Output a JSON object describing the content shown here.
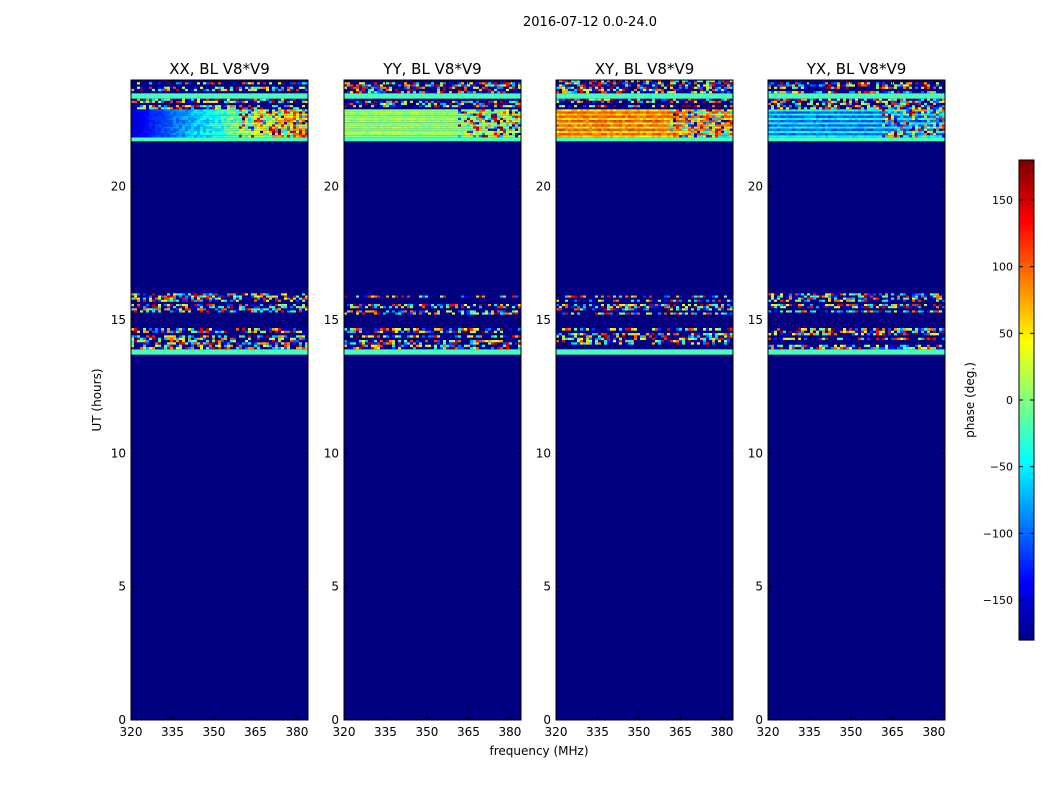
{
  "suptitle": "2016-07-12 0.0-24.0",
  "colors": {
    "background_fill": "#000080",
    "axis": "#000000",
    "text": "#000000"
  },
  "chart_data": [
    {
      "type": "heatmap",
      "title": "XX, BL V8*V9",
      "xlabel": "",
      "ylabel": "UT (hours)",
      "xlim": [
        320,
        384
      ],
      "ylim": [
        0,
        24
      ],
      "xticks": [
        "320",
        "335",
        "350",
        "365",
        "380"
      ],
      "yticks": [
        "0",
        "5",
        "10",
        "15",
        "20"
      ],
      "value_when_flagged": -180,
      "bands": [
        {
          "from": 13.7,
          "to": 13.9,
          "phase": -20,
          "pattern": "solid"
        },
        {
          "from": 13.9,
          "to": 14.6,
          "phase": 0,
          "pattern": "noise"
        },
        {
          "from": 14.6,
          "to": 14.7,
          "phase": 0,
          "pattern": "noise"
        },
        {
          "from": 15.2,
          "to": 16.0,
          "phase": 0,
          "pattern": "noise"
        },
        {
          "from": 21.7,
          "to": 21.85,
          "phase": -20,
          "pattern": "solid"
        },
        {
          "from": 21.85,
          "to": 22.9,
          "phase": -150,
          "pattern": "gradient-red"
        },
        {
          "from": 22.9,
          "to": 23.3,
          "phase": 0,
          "pattern": "noise"
        },
        {
          "from": 23.3,
          "to": 23.5,
          "phase": -20,
          "pattern": "solid"
        },
        {
          "from": 23.5,
          "to": 24.0,
          "phase": 0,
          "pattern": "noise"
        }
      ]
    },
    {
      "type": "heatmap",
      "title": "YY, BL V8*V9",
      "xlabel": "frequency (MHz)",
      "ylabel": "",
      "xlim": [
        320,
        384
      ],
      "ylim": [
        0,
        24
      ],
      "xticks": [
        "320",
        "335",
        "350",
        "365",
        "380"
      ],
      "yticks": [
        "0",
        "5",
        "10",
        "15",
        "20"
      ],
      "value_when_flagged": -180,
      "bands": [
        {
          "from": 13.7,
          "to": 13.9,
          "phase": -20,
          "pattern": "solid"
        },
        {
          "from": 13.9,
          "to": 14.6,
          "phase": 0,
          "pattern": "noise"
        },
        {
          "from": 14.6,
          "to": 14.7,
          "phase": 0,
          "pattern": "noise"
        },
        {
          "from": 15.2,
          "to": 16.0,
          "phase": 0,
          "pattern": "noise"
        },
        {
          "from": 21.7,
          "to": 21.85,
          "phase": -20,
          "pattern": "solid"
        },
        {
          "from": 21.85,
          "to": 22.9,
          "phase": 10,
          "pattern": "striped"
        },
        {
          "from": 22.9,
          "to": 23.3,
          "phase": 0,
          "pattern": "noise"
        },
        {
          "from": 23.3,
          "to": 23.5,
          "phase": -20,
          "pattern": "solid"
        },
        {
          "from": 23.5,
          "to": 24.0,
          "phase": 0,
          "pattern": "noise"
        }
      ]
    },
    {
      "type": "heatmap",
      "title": "XY, BL V8*V9",
      "xlabel": "",
      "ylabel": "",
      "xlim": [
        320,
        384
      ],
      "ylim": [
        0,
        24
      ],
      "xticks": [
        "320",
        "335",
        "350",
        "365",
        "380"
      ],
      "yticks": [
        "0",
        "5",
        "10",
        "15",
        "20"
      ],
      "value_when_flagged": -180,
      "bands": [
        {
          "from": 13.7,
          "to": 13.9,
          "phase": -20,
          "pattern": "solid"
        },
        {
          "from": 13.9,
          "to": 14.6,
          "phase": 0,
          "pattern": "noise"
        },
        {
          "from": 14.6,
          "to": 14.7,
          "phase": 0,
          "pattern": "noise"
        },
        {
          "from": 15.2,
          "to": 16.0,
          "phase": 0,
          "pattern": "noise"
        },
        {
          "from": 21.7,
          "to": 21.85,
          "phase": -20,
          "pattern": "solid"
        },
        {
          "from": 21.85,
          "to": 22.9,
          "phase": 60,
          "pattern": "striped-warm"
        },
        {
          "from": 22.9,
          "to": 23.3,
          "phase": 0,
          "pattern": "noise"
        },
        {
          "from": 23.3,
          "to": 23.5,
          "phase": -20,
          "pattern": "solid"
        },
        {
          "from": 23.5,
          "to": 24.0,
          "phase": 0,
          "pattern": "noise"
        }
      ]
    },
    {
      "type": "heatmap",
      "title": "YX, BL V8*V9",
      "xlabel": "",
      "ylabel": "",
      "xlim": [
        320,
        384
      ],
      "ylim": [
        0,
        24
      ],
      "xticks": [
        "320",
        "335",
        "350",
        "365",
        "380"
      ],
      "yticks": [
        "0",
        "5",
        "10",
        "15",
        "20"
      ],
      "value_when_flagged": -180,
      "bands": [
        {
          "from": 13.7,
          "to": 13.9,
          "phase": -20,
          "pattern": "solid"
        },
        {
          "from": 13.9,
          "to": 14.6,
          "phase": 0,
          "pattern": "noise"
        },
        {
          "from": 14.6,
          "to": 14.7,
          "phase": 0,
          "pattern": "noise"
        },
        {
          "from": 15.2,
          "to": 16.0,
          "phase": 0,
          "pattern": "noise"
        },
        {
          "from": 21.7,
          "to": 21.85,
          "phase": -20,
          "pattern": "solid"
        },
        {
          "from": 21.85,
          "to": 22.9,
          "phase": -60,
          "pattern": "striped-cool"
        },
        {
          "from": 22.9,
          "to": 23.3,
          "phase": 0,
          "pattern": "noise"
        },
        {
          "from": 23.3,
          "to": 23.5,
          "phase": -20,
          "pattern": "solid"
        },
        {
          "from": 23.5,
          "to": 24.0,
          "phase": 0,
          "pattern": "noise"
        }
      ]
    }
  ],
  "colorbar": {
    "label": "phase (deg.)",
    "range": [
      -180,
      180
    ],
    "ticks": [
      "150",
      "100",
      "50",
      "0",
      "−50",
      "−100",
      "−150"
    ],
    "tick_values": [
      150,
      100,
      50,
      0,
      -50,
      -100,
      -150
    ],
    "colormap": "jet"
  }
}
